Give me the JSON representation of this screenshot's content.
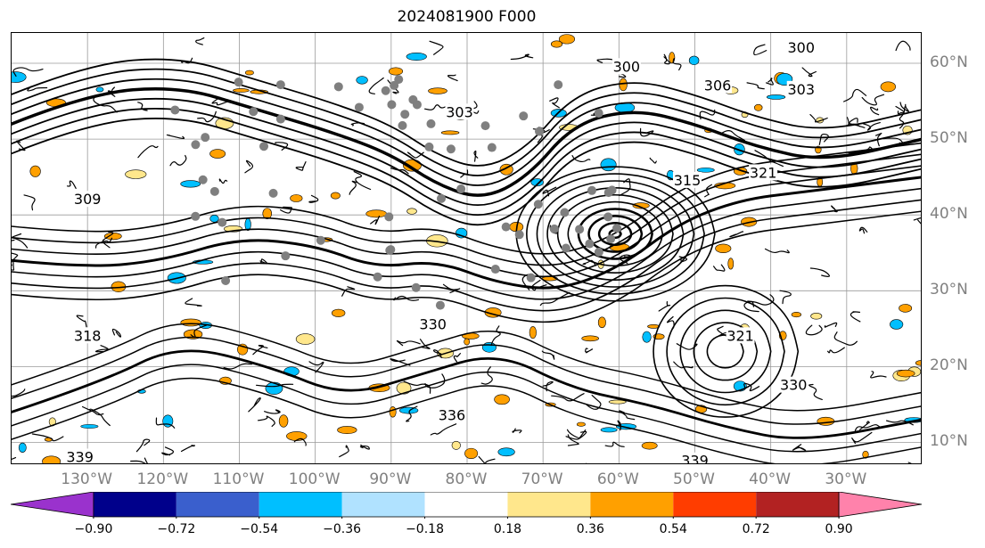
{
  "title": "2024081900 F000",
  "chart_data": {
    "type": "map-contour",
    "title": "2024081900 F000",
    "lon_range": [
      -140,
      -20
    ],
    "lat_range": [
      7,
      64
    ],
    "lon_ticks": [
      "130°W",
      "120°W",
      "110°W",
      "100°W",
      "90°W",
      "80°W",
      "70°W",
      "60°W",
      "50°W",
      "40°W",
      "30°W"
    ],
    "lon_values": [
      -130,
      -120,
      -110,
      -100,
      -90,
      -80,
      -70,
      -60,
      -50,
      -40,
      -30
    ],
    "lat_ticks": [
      "60°N",
      "50°N",
      "40°N",
      "30°N",
      "20°N",
      "10°N"
    ],
    "lat_values": [
      60,
      50,
      40,
      30,
      20,
      10
    ],
    "grid": true,
    "contour_labels": [
      {
        "text": "300",
        "lon": -59,
        "lat": 59.5
      },
      {
        "text": "300",
        "lon": -36,
        "lat": 62
      },
      {
        "text": "303",
        "lon": -36,
        "lat": 56.5
      },
      {
        "text": "306",
        "lon": -47,
        "lat": 57
      },
      {
        "text": "303",
        "lon": -81,
        "lat": 53.5
      },
      {
        "text": "315",
        "lon": -51,
        "lat": 44.5
      },
      {
        "text": "321",
        "lon": -41,
        "lat": 45.5
      },
      {
        "text": "318",
        "lon": -130,
        "lat": 24
      },
      {
        "text": "330",
        "lon": -84.5,
        "lat": 25.5
      },
      {
        "text": "330",
        "lon": -37,
        "lat": 17.5
      },
      {
        "text": "336",
        "lon": -82,
        "lat": 13.5
      },
      {
        "text": "339",
        "lon": -131,
        "lat": 8
      },
      {
        "text": "339",
        "lon": -50,
        "lat": 7.5
      },
      {
        "text": "321",
        "lon": -44,
        "lat": 24
      },
      {
        "text": "309",
        "lon": -130,
        "lat": 42
      }
    ],
    "cyclone_center": {
      "lon": -60.5,
      "lat": 37.5
    },
    "colorbar": {
      "levels": [
        -0.9,
        -0.72,
        -0.54,
        -0.36,
        -0.18,
        0.18,
        0.36,
        0.54,
        0.72,
        0.9
      ],
      "tick_labels": [
        "−0.90",
        "−0.72",
        "−0.54",
        "−0.36",
        "−0.18",
        "0.18",
        "0.36",
        "0.54",
        "0.72",
        "0.90"
      ],
      "colors": [
        "#9a32cd",
        "#00008b",
        "#3a5fcd",
        "#00bfff",
        "#b0e2ff",
        "#ffffff",
        "#ffe78c",
        "#ffa000",
        "#ff3d00",
        "#b22222",
        "#ff82ab"
      ],
      "extend": "both"
    }
  }
}
